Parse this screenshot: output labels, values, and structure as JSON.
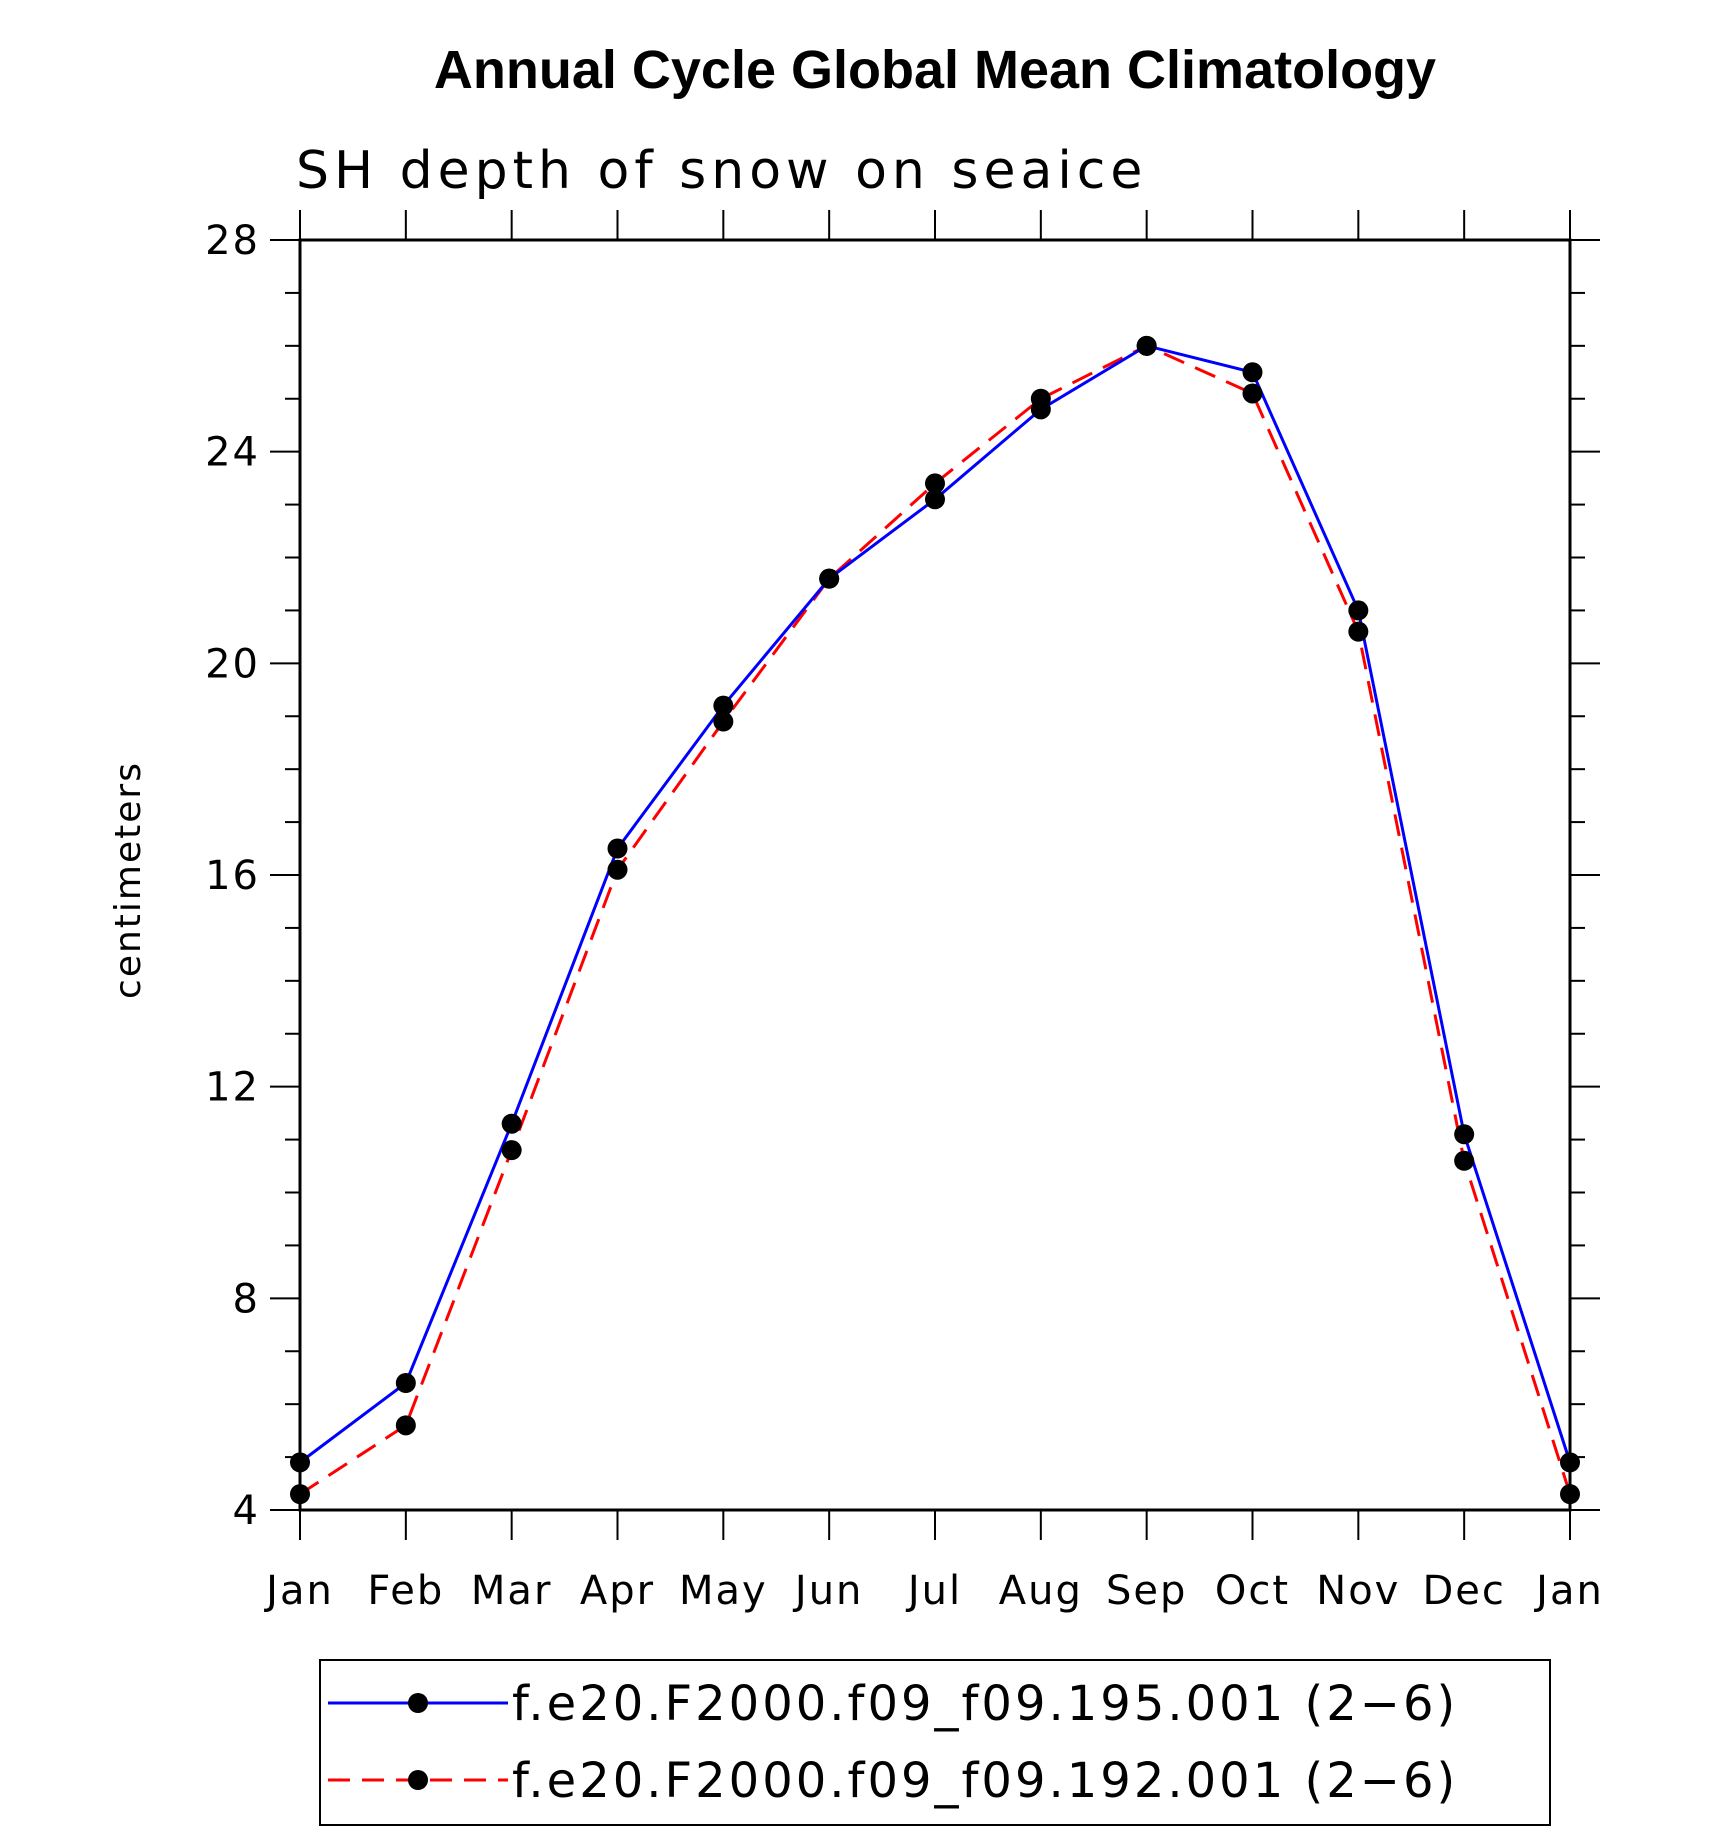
{
  "chart_data": {
    "type": "line",
    "title": "Annual Cycle Global Mean Climatology",
    "subtitle": "SH depth of snow on seaice",
    "xlabel": "",
    "ylabel": "centimeters",
    "categories": [
      "Jan",
      "Feb",
      "Mar",
      "Apr",
      "May",
      "Jun",
      "Jul",
      "Aug",
      "Sep",
      "Oct",
      "Nov",
      "Dec",
      "Jan"
    ],
    "ylim": [
      4,
      28
    ],
    "yticks": [
      "4",
      "8",
      "12",
      "16",
      "20",
      "24",
      "28"
    ],
    "series": [
      {
        "name": "f.e20.F2000.f09_f09.195.001 (2−6)",
        "color": "#0000ff",
        "dash": "solid",
        "marker": "filled-circle",
        "values": [
          4.9,
          6.4,
          11.3,
          16.5,
          19.2,
          21.6,
          23.1,
          24.8,
          26.0,
          25.5,
          21.0,
          11.1,
          4.9
        ]
      },
      {
        "name": "f.e20.F2000.f09_f09.192.001 (2−6)",
        "color": "#ff0000",
        "dash": "dashed",
        "marker": "filled-circle",
        "values": [
          4.3,
          5.6,
          10.8,
          16.1,
          18.9,
          21.6,
          23.4,
          25.0,
          26.0,
          25.1,
          20.6,
          10.6,
          4.3
        ]
      }
    ],
    "legend": "bottom-center, boxed",
    "grid": false
  }
}
